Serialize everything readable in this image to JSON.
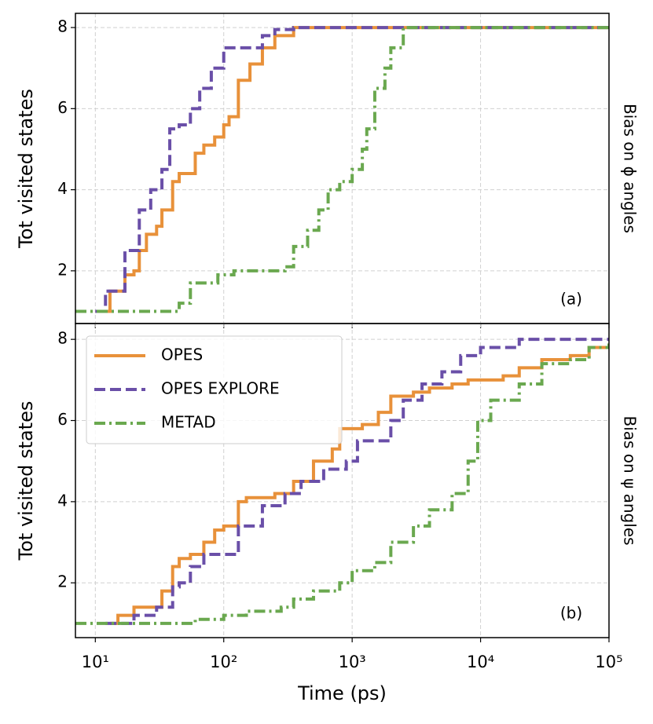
{
  "chart_data": [
    {
      "type": "line",
      "ylabel": "Tot visited states",
      "annotation": "(a)",
      "side_label": "Bias on ϕ angles",
      "xscale": "log",
      "xlim": [
        7,
        100000
      ],
      "ylim": [
        0.7,
        8.35
      ],
      "grid": true,
      "steps": true,
      "xticks": [
        {
          "value": 10,
          "label": "10¹"
        },
        {
          "value": 100,
          "label": "10²"
        },
        {
          "value": 1000,
          "label": "10³"
        },
        {
          "value": 10000,
          "label": "10⁴"
        },
        {
          "value": 100000,
          "label": "10⁵"
        }
      ],
      "yticks": [
        2,
        4,
        6,
        8
      ],
      "series": [
        {
          "color": "#e8913a",
          "dash": "solid",
          "x": [
            10,
            13,
            17,
            20,
            22,
            25,
            30,
            33,
            40,
            45,
            55,
            60,
            70,
            85,
            100,
            110,
            130,
            160,
            200,
            250,
            350,
            100000
          ],
          "values": [
            1,
            1.5,
            1.9,
            2.0,
            2.5,
            2.9,
            3.1,
            3.5,
            4.2,
            4.4,
            4.4,
            4.9,
            5.1,
            5.3,
            5.6,
            5.8,
            6.7,
            7.1,
            7.5,
            7.8,
            8,
            8
          ]
        },
        {
          "color": "#6a4fa8",
          "dash": "dashed",
          "x": [
            10,
            12,
            17,
            22,
            27,
            33,
            38,
            45,
            55,
            65,
            80,
            100,
            150,
            200,
            250,
            350,
            100000
          ],
          "values": [
            1,
            1.5,
            2.5,
            3.5,
            4.0,
            4.5,
            5.5,
            5.6,
            6.0,
            6.5,
            7.0,
            7.5,
            7.5,
            7.8,
            7.95,
            8,
            8
          ]
        },
        {
          "color": "#6aa84f",
          "dash": "dashdot",
          "x": [
            7,
            40,
            45,
            55,
            70,
            90,
            120,
            200,
            300,
            350,
            450,
            550,
            650,
            800,
            1000,
            1200,
            1300,
            1500,
            1800,
            2000,
            2500,
            100000
          ],
          "values": [
            1,
            1,
            1.2,
            1.7,
            1.7,
            1.9,
            2.0,
            2.0,
            2.1,
            2.6,
            3.0,
            3.5,
            4.0,
            4.2,
            4.5,
            5.0,
            5.5,
            6.5,
            7.0,
            7.5,
            8.0,
            8.0
          ]
        }
      ]
    },
    {
      "type": "line",
      "ylabel": "Tot visited states",
      "xlabel": "Time (ps)",
      "annotation": "(b)",
      "side_label": "Bias on ψ angles",
      "xscale": "log",
      "xlim": [
        7,
        100000
      ],
      "ylim": [
        0.65,
        8.39
      ],
      "grid": true,
      "steps": true,
      "legend": "upper left",
      "xticks": [
        {
          "value": 10,
          "label": "10¹"
        },
        {
          "value": 100,
          "label": "10²"
        },
        {
          "value": 1000,
          "label": "10³"
        },
        {
          "value": 10000,
          "label": "10⁴"
        },
        {
          "value": 100000,
          "label": "10⁵"
        }
      ],
      "yticks": [
        2,
        4,
        6,
        8
      ],
      "series": [
        {
          "name": "OPES",
          "color": "#e8913a",
          "dash": "solid",
          "x": [
            13,
            15,
            20,
            28,
            33,
            40,
            45,
            55,
            70,
            85,
            100,
            130,
            150,
            250,
            350,
            500,
            700,
            800,
            1200,
            1600,
            2000,
            3000,
            4000,
            6000,
            8000,
            15000,
            20000,
            30000,
            50000,
            70000,
            100000
          ],
          "values": [
            1,
            1.2,
            1.4,
            1.4,
            1.8,
            2.4,
            2.6,
            2.7,
            3.0,
            3.3,
            3.4,
            4.0,
            4.1,
            4.2,
            4.5,
            5.0,
            5.3,
            5.8,
            5.9,
            6.2,
            6.6,
            6.7,
            6.8,
            6.9,
            7.0,
            7.1,
            7.3,
            7.5,
            7.6,
            7.8,
            7.8
          ]
        },
        {
          "name": "OPES EXPLORE",
          "color": "#6a4fa8",
          "dash": "dashed",
          "x": [
            12,
            20,
            30,
            40,
            45,
            55,
            70,
            100,
            130,
            200,
            300,
            400,
            600,
            900,
            1100,
            2000,
            2500,
            3500,
            5000,
            7000,
            10000,
            20000,
            100000
          ],
          "values": [
            1,
            1.2,
            1.4,
            1.9,
            2.0,
            2.4,
            2.7,
            2.7,
            3.4,
            3.9,
            4.2,
            4.5,
            4.8,
            5.0,
            5.5,
            6.0,
            6.5,
            6.9,
            7.2,
            7.6,
            7.8,
            8.0,
            8.0
          ]
        },
        {
          "name": "METAD",
          "color": "#6aa84f",
          "dash": "dashdot",
          "x": [
            7,
            40,
            60,
            100,
            150,
            280,
            350,
            500,
            800,
            1000,
            1500,
            2000,
            3000,
            4000,
            6000,
            8000,
            9500,
            12000,
            20000,
            30000,
            50000,
            70000,
            100000
          ],
          "values": [
            1,
            1,
            1.1,
            1.2,
            1.3,
            1.4,
            1.6,
            1.8,
            2.0,
            2.3,
            2.5,
            3.0,
            3.4,
            3.8,
            4.2,
            5.0,
            6.0,
            6.5,
            6.9,
            7.4,
            7.5,
            7.8,
            7.9
          ]
        }
      ]
    }
  ]
}
